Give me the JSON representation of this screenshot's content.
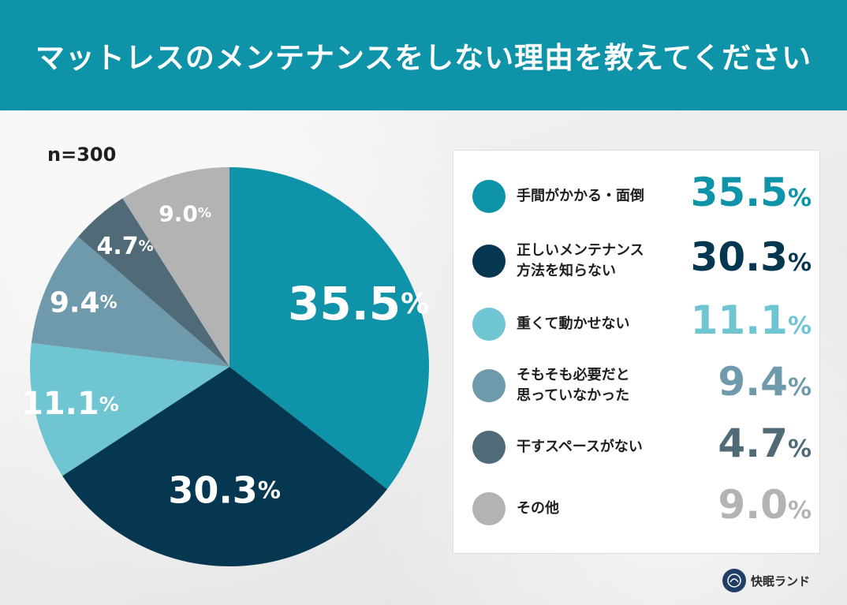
{
  "title": "マットレスのメンテナンスをしない理由を教えてください",
  "sample_size": "n=300",
  "brand": "快眠ランド",
  "chart_data": {
    "type": "pie",
    "percent_sign": "%",
    "slices": [
      {
        "label": "手間がかかる・面倒",
        "label_lines": [
          "手間がかかる・面倒"
        ],
        "value": 35.5,
        "display": "35.5",
        "color": "#0e93a8"
      },
      {
        "label": "正しいメンテナンス方法を知らない",
        "label_lines": [
          "正しいメンテナンス",
          "方法を知らない"
        ],
        "value": 30.3,
        "display": "30.3",
        "color": "#063750"
      },
      {
        "label": "重くて動かせない",
        "label_lines": [
          "重くて動かせない"
        ],
        "value": 11.1,
        "display": "11.1",
        "color": "#6fc6d2"
      },
      {
        "label": "そもそも必要だと思っていなかった",
        "label_lines": [
          "そもそも必要だと",
          "思っていなかった"
        ],
        "value": 9.4,
        "display": "9.4",
        "color": "#6f9aab"
      },
      {
        "label": "干すスペースがない",
        "label_lines": [
          "干すスペースがない"
        ],
        "value": 4.7,
        "display": "4.7",
        "color": "#506a77"
      },
      {
        "label": "その他",
        "label_lines": [
          "その他"
        ],
        "value": 9.0,
        "display": "9.0",
        "color": "#b3b3b3"
      }
    ]
  }
}
